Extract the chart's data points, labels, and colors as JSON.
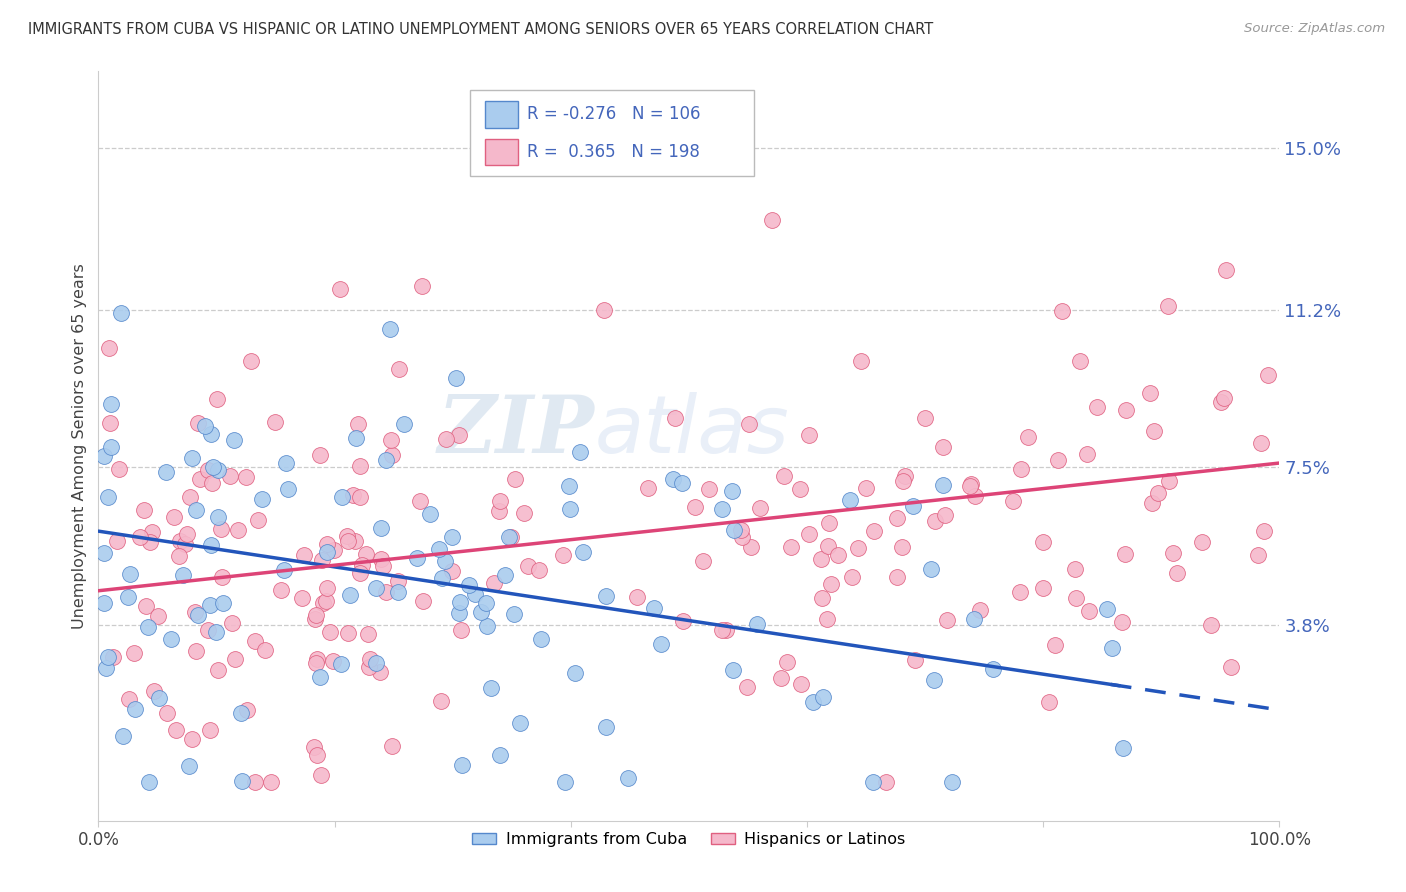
{
  "title": "IMMIGRANTS FROM CUBA VS HISPANIC OR LATINO UNEMPLOYMENT AMONG SENIORS OVER 65 YEARS CORRELATION CHART",
  "source": "Source: ZipAtlas.com",
  "ylabel": "Unemployment Among Seniors over 65 years",
  "xlim": [
    0,
    1.0
  ],
  "ylim": [
    -0.008,
    0.168
  ],
  "yticks": [
    0.038,
    0.075,
    0.112,
    0.15
  ],
  "ytick_labels": [
    "3.8%",
    "7.5%",
    "11.2%",
    "15.0%"
  ],
  "xticks": [
    0.0,
    0.2,
    0.4,
    0.6,
    0.8,
    1.0
  ],
  "xtick_labels": [
    "0.0%",
    "",
    "",
    "",
    "",
    "100.0%"
  ],
  "blue_R": "-0.276",
  "blue_N": "106",
  "pink_R": "0.365",
  "pink_N": "198",
  "blue_color": "#aaccee",
  "pink_color": "#f5b8cb",
  "blue_edge_color": "#5588cc",
  "pink_edge_color": "#e06080",
  "blue_line_color": "#2255bb",
  "pink_line_color": "#dd4477",
  "background_color": "#ffffff",
  "watermark_zip": "ZIP",
  "watermark_atlas": "atlas",
  "blue_intercept": 0.06,
  "blue_slope": -0.042,
  "pink_intercept": 0.046,
  "pink_slope": 0.03,
  "blue_seed": 7,
  "pink_seed": 21
}
